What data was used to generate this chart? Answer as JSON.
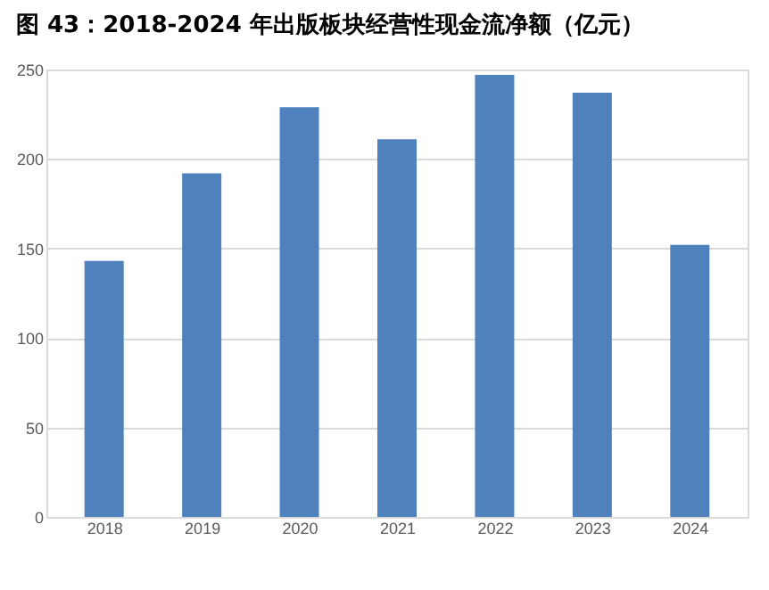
{
  "chart_data": {
    "type": "bar",
    "title": "图 43：2018-2024 年出版板块经营性现金流净额（亿元）",
    "categories": [
      "2018",
      "2019",
      "2020",
      "2021",
      "2022",
      "2023",
      "2024"
    ],
    "values": [
      143,
      192,
      229,
      211,
      247,
      237,
      152
    ],
    "color": "#4f81bd",
    "ylim": [
      0,
      250
    ],
    "yticks": [
      0,
      50,
      100,
      150,
      200,
      250
    ],
    "grid": "y"
  }
}
